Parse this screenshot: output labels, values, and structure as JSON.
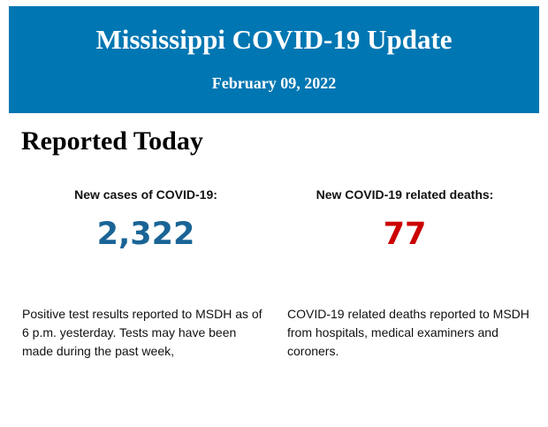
{
  "header": {
    "title": "Mississippi COVID-19 Update",
    "date": "February 09, 2022"
  },
  "section": {
    "title": "Reported Today"
  },
  "cases": {
    "label": "New cases of COVID-19:",
    "value": "2,322",
    "description": "Positive test results reported to MSDH as of 6 p.m. yesterday. Tests may have been made during the past week,"
  },
  "deaths": {
    "label": "New COVID-19 related deaths:",
    "value": "77",
    "description": "COVID-19 related deaths reported to MSDH from hospitals, medical examiners and coroners."
  },
  "colors": {
    "banner": "#0076b2",
    "cases": "#1a6496",
    "deaths": "#cc0000"
  }
}
